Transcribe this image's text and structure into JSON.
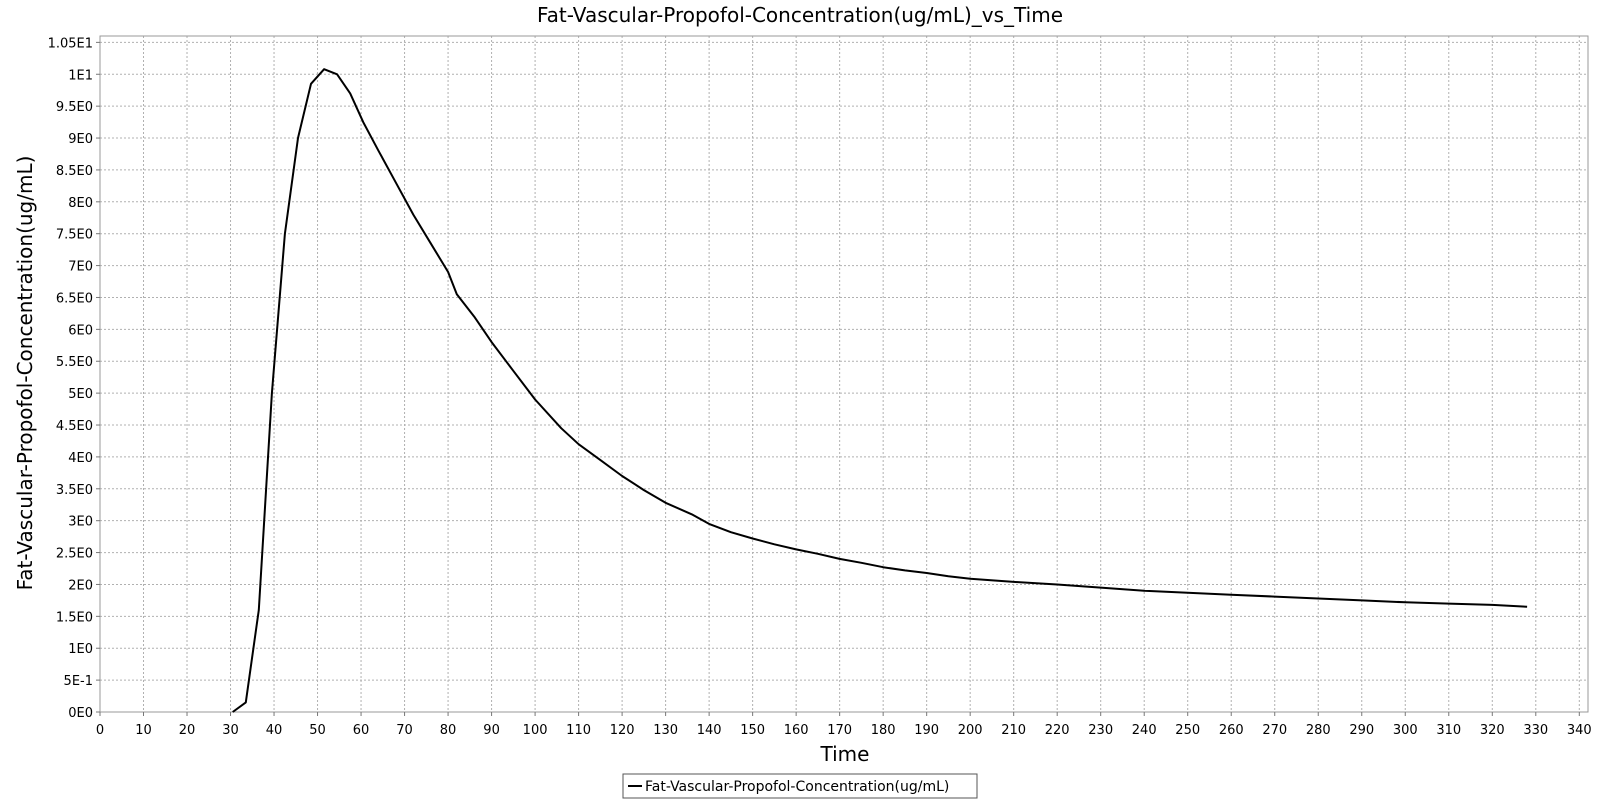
{
  "chart_data": {
    "type": "line",
    "title": "Fat-Vascular-Propofol-Concentration(ug/mL)_vs_Time",
    "xlabel": "Time",
    "ylabel": "Fat-Vascular-Propofol-Concentration(ug/mL)",
    "xlim": [
      0,
      342
    ],
    "ylim": [
      0,
      10.6
    ],
    "x_ticks": [
      0,
      10,
      20,
      30,
      40,
      50,
      60,
      70,
      80,
      90,
      100,
      110,
      120,
      130,
      140,
      150,
      160,
      170,
      180,
      190,
      200,
      210,
      220,
      230,
      240,
      250,
      260,
      270,
      280,
      290,
      300,
      310,
      320,
      330,
      340
    ],
    "x_tick_labels": [
      "0",
      "10",
      "20",
      "30",
      "40",
      "50",
      "60",
      "70",
      "80",
      "90",
      "100",
      "110",
      "120",
      "130",
      "140",
      "150",
      "160",
      "170",
      "180",
      "190",
      "200",
      "210",
      "220",
      "230",
      "240",
      "250",
      "260",
      "270",
      "280",
      "290",
      "300",
      "310",
      "320",
      "330",
      "340"
    ],
    "y_ticks": [
      0,
      0.5,
      1,
      1.5,
      2,
      2.5,
      3,
      3.5,
      4,
      4.5,
      5,
      5.5,
      6,
      6.5,
      7,
      7.5,
      8,
      8.5,
      9,
      9.5,
      10,
      10.5
    ],
    "y_tick_labels": [
      "0E0",
      "5E-1",
      "1E0",
      "1.5E0",
      "2E0",
      "2.5E0",
      "3E0",
      "3.5E0",
      "4E0",
      "4.5E0",
      "5E0",
      "5.5E0",
      "6E0",
      "6.5E0",
      "7E0",
      "7.5E0",
      "8E0",
      "8.5E0",
      "9E0",
      "9.5E0",
      "1E1",
      "1.05E1"
    ],
    "grid": true,
    "legend_position": "bottom-center",
    "series": [
      {
        "name": "Fat-Vascular-Propofol-Concentration(ug/mL)",
        "color": "#000000",
        "x": [
          30.5,
          33.5,
          36.5,
          39.5,
          42.5,
          45.5,
          48.5,
          51.5,
          54.5,
          57.5,
          60.5,
          64,
          68,
          72,
          76,
          80,
          82,
          86,
          90,
          95,
          100,
          106,
          110,
          115,
          120,
          125,
          130,
          136,
          140,
          145,
          150,
          155,
          160,
          165,
          170,
          175,
          180,
          185,
          190,
          195,
          200,
          210,
          220,
          230,
          240,
          250,
          260,
          270,
          280,
          290,
          300,
          310,
          320,
          328
        ],
        "y": [
          0,
          0.15,
          1.6,
          5.0,
          7.5,
          9.0,
          9.85,
          10.08,
          10.0,
          9.7,
          9.25,
          8.8,
          8.3,
          7.8,
          7.35,
          6.9,
          6.55,
          6.2,
          5.8,
          5.35,
          4.9,
          4.45,
          4.2,
          3.95,
          3.7,
          3.48,
          3.28,
          3.1,
          2.95,
          2.82,
          2.72,
          2.63,
          2.55,
          2.48,
          2.4,
          2.34,
          2.27,
          2.22,
          2.18,
          2.13,
          2.09,
          2.04,
          2.0,
          1.95,
          1.9,
          1.87,
          1.84,
          1.81,
          1.78,
          1.75,
          1.72,
          1.7,
          1.68,
          1.65
        ]
      }
    ]
  }
}
